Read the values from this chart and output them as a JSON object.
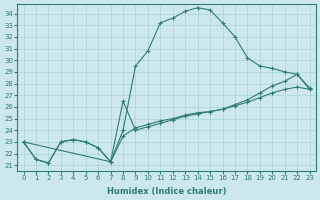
{
  "xlabel": "Humidex (Indice chaleur)",
  "bg_color": "#cce8ec",
  "line_color": "#2e7d6e",
  "xlim": [
    -0.5,
    23.5
  ],
  "ylim": [
    20.5,
    34.8
  ],
  "yticks": [
    21,
    22,
    23,
    24,
    25,
    26,
    27,
    28,
    29,
    30,
    31,
    32,
    33,
    34
  ],
  "xticks": [
    0,
    1,
    2,
    3,
    4,
    5,
    6,
    7,
    8,
    9,
    10,
    11,
    12,
    13,
    14,
    15,
    16,
    17,
    18,
    19,
    20,
    21,
    22,
    23
  ],
  "curve1_x": [
    0,
    1,
    2,
    3,
    4,
    5,
    6,
    7,
    8,
    9,
    10,
    11,
    12,
    13,
    14,
    15,
    16,
    17,
    18,
    19,
    20,
    21,
    22,
    23
  ],
  "curve1_y": [
    23.0,
    21.5,
    21.2,
    23.0,
    23.2,
    23.0,
    22.5,
    21.3,
    24.0,
    29.5,
    30.8,
    33.2,
    33.6,
    34.2,
    34.5,
    34.3,
    33.2,
    32.0,
    30.2,
    29.5,
    29.3,
    29.0,
    28.8,
    27.6
  ],
  "curve2_x": [
    0,
    1,
    2,
    3,
    4,
    5,
    6,
    7,
    8,
    9,
    10,
    11,
    12,
    13,
    14,
    15,
    16,
    17,
    18,
    19,
    20,
    21,
    22,
    23
  ],
  "curve2_y": [
    23.0,
    21.5,
    21.2,
    23.0,
    23.2,
    23.0,
    22.5,
    21.3,
    23.5,
    24.2,
    24.5,
    24.8,
    25.0,
    25.3,
    25.5,
    25.6,
    25.8,
    26.1,
    26.4,
    26.8,
    27.2,
    27.5,
    27.7,
    27.5
  ],
  "curve3_x": [
    0,
    7,
    8,
    9,
    10,
    11,
    12,
    13,
    14,
    15,
    16,
    17,
    18,
    19,
    20,
    21,
    22,
    23
  ],
  "curve3_y": [
    23.0,
    21.3,
    26.5,
    24.0,
    24.3,
    24.6,
    24.9,
    25.2,
    25.4,
    25.6,
    25.8,
    26.2,
    26.6,
    27.2,
    27.8,
    28.2,
    28.8,
    27.5
  ],
  "grid_color": "#a8d4d8",
  "marker": "+"
}
